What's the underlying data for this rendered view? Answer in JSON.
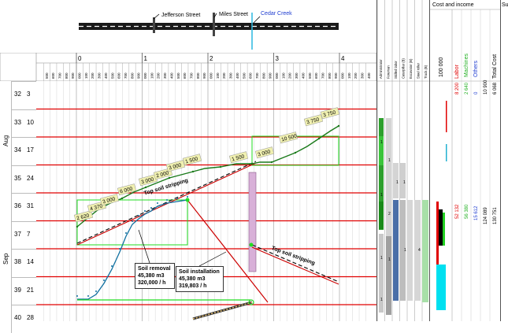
{
  "map": {
    "streets": [
      "Jefferson Street",
      "Miles Street",
      "Cedar Creek"
    ],
    "colors": {
      "cedar_creek": "#1e3cd0",
      "creek_line": "#2ab8e0"
    }
  },
  "timeline": {
    "scale_labels": [
      "0",
      "1",
      "2",
      "3",
      "4"
    ],
    "scale_minor_labels": [
      "000",
      "100",
      "200",
      "300",
      "400",
      "500",
      "600",
      "700",
      "800",
      "900"
    ],
    "months": [
      "Aug",
      "Sep"
    ],
    "weeks": [
      {
        "week": "32",
        "day": "3"
      },
      {
        "week": "33",
        "day": "10"
      },
      {
        "week": "34",
        "day": "17"
      },
      {
        "week": "35",
        "day": "24"
      },
      {
        "week": "36",
        "day": "31"
      },
      {
        "week": "37",
        "day": "7"
      },
      {
        "week": "38",
        "day": "14"
      },
      {
        "week": "39",
        "day": "21"
      },
      {
        "week": "40",
        "day": "28"
      }
    ]
  },
  "resource_columns": [
    "Administrator",
    "Foreman",
    "Skilled labor",
    "Caterpillar (B)",
    "Excavator (B)",
    "Steel roller",
    "Truck (B)"
  ],
  "resource_values": [
    "1",
    "1",
    "1",
    "1",
    "1",
    "2",
    "1",
    "1",
    "1",
    "4",
    "1"
  ],
  "cost_panel": {
    "title": "Cost and income",
    "side_title": "Su",
    "columns": [
      {
        "header": "100 000",
        "color": "#000000"
      },
      {
        "header": "Labor",
        "color": "#e00000"
      },
      {
        "header": "Machines",
        "color": "#22b022"
      },
      {
        "header": "Others",
        "color": "#1e3cd0"
      },
      {
        "header": "Total Cost",
        "color": "#000000"
      }
    ],
    "values_top": {
      "labor": "8 200",
      "machines": "2 640",
      "others": "0",
      "total": "10 900",
      "total_cost": "6 068"
    },
    "values_bottom": {
      "labor": "52 132",
      "machines": "56 380",
      "others": "15 612",
      "total": "124 089",
      "total_cost": "130 751"
    }
  },
  "progress_labels": [
    "2 620",
    "4 370",
    "3 000",
    "6 000",
    "3 000",
    "2 000",
    "3 000",
    "1 500",
    "1 500",
    "3 000",
    "10 500",
    "3 750",
    "3 750"
  ],
  "annotations": {
    "top_soil_stripping": "Top soil stripping",
    "soil_removal": {
      "title": "Soil removal",
      "volume": "45,380 m3",
      "rate": "320,000 / h"
    },
    "soil_installation": {
      "title": "Soil installation",
      "volume": "45,380 m3",
      "rate": "319,803 / h"
    }
  },
  "colors": {
    "week_line": "#e00000",
    "green": "#1a7a1a",
    "bright_green": "#22dd22",
    "blue_curve": "#1070a0",
    "label_fill": "#f0f0b0",
    "purple_block": "#d8b0d8"
  }
}
